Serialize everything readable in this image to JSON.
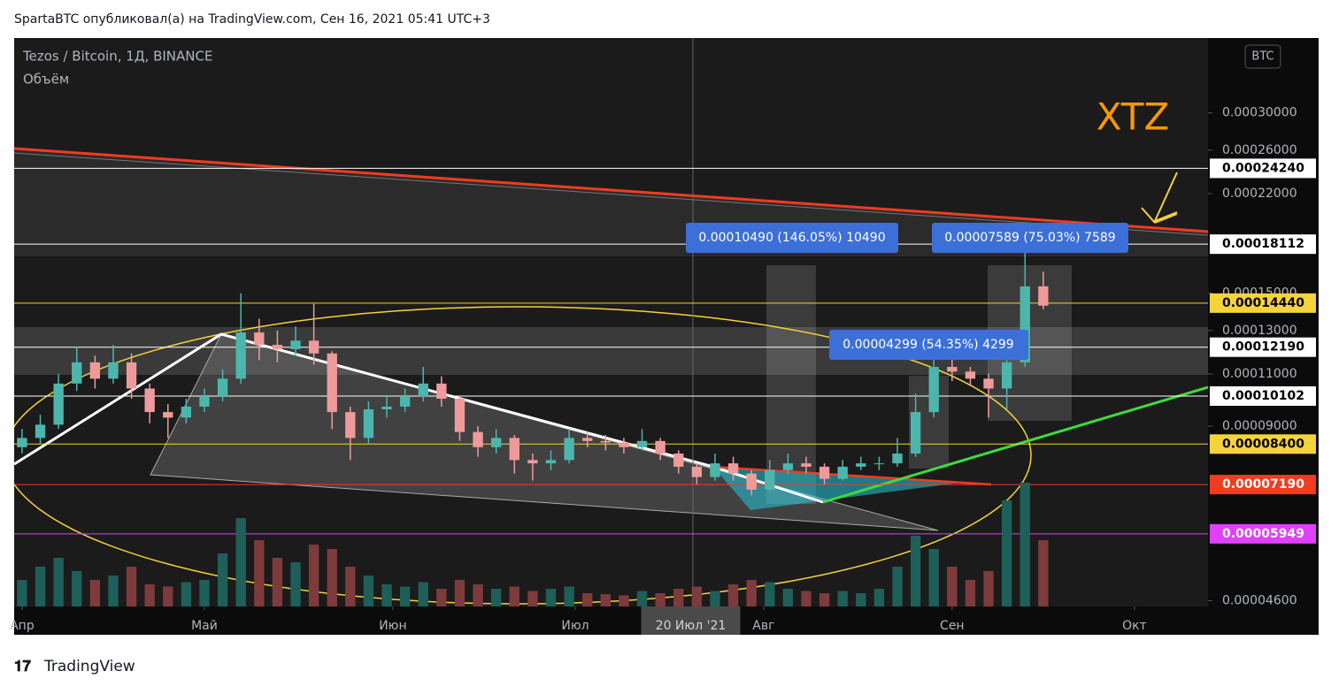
{
  "header": "SpartaBTC опубликовал(а) на TradingView.com, Сен 16, 2021 05:41 UTC+3",
  "footer": "TradingView",
  "chart_data": {
    "type": "candlestick",
    "title": "Tezos / Bitcoin, 1Д, BINANCE",
    "indicator": "Объём",
    "currency": "BTC",
    "symbol_note": "XTZ",
    "crosshair_label": "20 Июл '21",
    "log_scale": true,
    "up_color": "#4db6ac",
    "down_color": "#ef9a9a",
    "volume_up_color": "#1f5f59",
    "volume_down_color": "#7d3b3b",
    "xlim": [
      -1.3,
      195.1
    ],
    "xticks": [
      {
        "value": 0,
        "label": "Апр"
      },
      {
        "value": 30,
        "label": "Май"
      },
      {
        "value": 61,
        "label": "Июн"
      },
      {
        "value": 91,
        "label": "Июл"
      },
      {
        "value": 122,
        "label": "Авг"
      },
      {
        "value": 153,
        "label": "Сен"
      },
      {
        "value": 183,
        "label": "Окт"
      }
    ],
    "crosshair_x": 110,
    "ylim": [
      4.5e-05,
      0.0004
    ],
    "yticks": [
      {
        "value": 0.0003,
        "label": "0.00030000"
      },
      {
        "value": 0.00026,
        "label": "0.00026000"
      },
      {
        "value": 0.00022,
        "label": "0.00022000"
      },
      {
        "value": 0.00015,
        "label": "0.00015000"
      },
      {
        "value": 0.00013,
        "label": "0.00013000"
      },
      {
        "value": 0.00011,
        "label": "0.00011000"
      },
      {
        "value": 9e-05,
        "label": "0.00009000"
      },
      {
        "value": 4.6e-05,
        "label": "0.00004600"
      }
    ],
    "hlines": [
      {
        "value": 0.0002424,
        "label": "0.00024240",
        "color": "#ffffff",
        "text_color": "#000000"
      },
      {
        "value": 0.00018112,
        "label": "0.00018112",
        "color": "#ffffff",
        "text_color": "#000000"
      },
      {
        "value": 0.0001444,
        "label": "0.00014440",
        "color": "#f5d33a",
        "text_color": "#000000"
      },
      {
        "value": 0.0001219,
        "label": "0.00012190",
        "color": "#ffffff",
        "text_color": "#000000"
      },
      {
        "value": 0.00010102,
        "label": "0.00010102",
        "color": "#ffffff",
        "text_color": "#000000"
      },
      {
        "value": 8.4e-05,
        "label": "0.00008400",
        "color": "#f5d33a",
        "text_color": "#000000"
      },
      {
        "value": 7.19e-05,
        "label": "0.00007190",
        "color": "#f23b21",
        "text_color": "#ffffff"
      },
      {
        "value": 5.949e-05,
        "label": "0.00005949",
        "color": "#e040fb",
        "text_color": "#ffffff"
      }
    ],
    "annotations": [
      "0.00010490 (146.05%) 10490",
      "0.00007589 (75.03%) 7589",
      "0.00004299 (54.35%) 4299"
    ],
    "vlim": [
      0,
      300
    ],
    "x": [
      0,
      3,
      6,
      9,
      12,
      15,
      18,
      21,
      24,
      27,
      30,
      33,
      36,
      39,
      42,
      45,
      48,
      51,
      54,
      57,
      60,
      63,
      66,
      69,
      72,
      75,
      78,
      81,
      84,
      87,
      90,
      93,
      96,
      99,
      102,
      105,
      108,
      111,
      114,
      117,
      120,
      123,
      126,
      129,
      132,
      135,
      138,
      141,
      144,
      147,
      150,
      153,
      156,
      159,
      162,
      165,
      168
    ],
    "open": [
      8.3e-05,
      8.6e-05,
      9.05e-05,
      0.000106,
      0.000115,
      0.000108,
      0.000115,
      0.000104,
      9.5e-05,
      9.3e-05,
      9.7e-05,
      0.000101,
      0.000108,
      0.000129,
      0.000123,
      0.000121,
      0.000125,
      0.000119,
      9.5e-05,
      8.6e-05,
      9.6e-05,
      9.7e-05,
      0.000101,
      0.000106,
      0.0001,
      8.8e-05,
      8.3e-05,
      8.6e-05,
      7.9e-05,
      7.8e-05,
      7.9e-05,
      8.6e-05,
      8.5e-05,
      8.45e-05,
      8.3e-05,
      8.5e-05,
      8.1e-05,
      7.7e-05,
      7.4e-05,
      7.8e-05,
      7.5e-05,
      7.05e-05,
      7.6e-05,
      7.8e-05,
      7.7e-05,
      7.35e-05,
      7.7e-05,
      7.8e-05,
      7.8e-05,
      8.1e-05,
      9.5e-05,
      0.000113,
      0.000111,
      0.000108,
      0.000104,
      0.000115,
      0.000154
    ],
    "high": [
      8.9e-05,
      9.4e-05,
      0.00011,
      0.000122,
      0.000118,
      0.000123,
      0.000119,
      0.000106,
      9.8e-05,
      0.0001,
      0.000104,
      0.000112,
      0.00015,
      0.000136,
      0.00013,
      0.000132,
      0.000144,
      0.00012,
      9.7e-05,
      9.9e-05,
      0.000101,
      0.000104,
      0.000113,
      0.000109,
      0.000101,
      9e-05,
      8.9e-05,
      8.7e-05,
      8.1e-05,
      8.2e-05,
      8.9e-05,
      8.8e-05,
      8.7e-05,
      8.6e-05,
      8.9e-05,
      8.6e-05,
      8.2e-05,
      7.8e-05,
      8.1e-05,
      8e-05,
      7.6e-05,
      7.9e-05,
      8.1e-05,
      8e-05,
      7.8e-05,
      7.9e-05,
      8e-05,
      8e-05,
      8.6e-05,
      0.000102,
      0.000124,
      0.000119,
      0.000113,
      0.00011,
      0.000122,
      0.000181,
      0.000163
    ],
    "low": [
      8.1e-05,
      8.4e-05,
      8.9e-05,
      0.000103,
      0.000104,
      0.000106,
      0.0001,
      9.1e-05,
      8.6e-05,
      9.1e-05,
      9.5e-05,
      9.9e-05,
      0.000106,
      0.000116,
      0.000115,
      0.000118,
      0.000114,
      8.9e-05,
      7.9e-05,
      8.4e-05,
      9.3e-05,
      9.5e-05,
      9.9e-05,
      9.7e-05,
      8.5e-05,
      8e-05,
      8.1e-05,
      7.5e-05,
      7.3e-05,
      7.6e-05,
      7.8e-05,
      8.3e-05,
      8.2e-05,
      8.1e-05,
      8.2e-05,
      7.9e-05,
      7.5e-05,
      7.2e-05,
      7.3e-05,
      7.3e-05,
      6.9e-05,
      7e-05,
      7.5e-05,
      7.5e-05,
      7.2e-05,
      7.3e-05,
      7.6e-05,
      7.6e-05,
      7.7e-05,
      8e-05,
      9.3e-05,
      0.000107,
      0.000105,
      9.3e-05,
      9.6e-05,
      0.000113,
      0.000141
    ],
    "close": [
      8.6e-05,
      9.05e-05,
      0.000106,
      0.000115,
      0.000108,
      0.000115,
      0.000104,
      9.5e-05,
      9.3e-05,
      9.7e-05,
      0.000101,
      0.000108,
      0.000129,
      0.000123,
      0.000121,
      0.000125,
      0.000119,
      9.5e-05,
      8.6e-05,
      9.6e-05,
      9.7e-05,
      0.000101,
      0.000106,
      0.0001,
      8.8e-05,
      8.3e-05,
      8.6e-05,
      7.9e-05,
      7.8e-05,
      7.9e-05,
      8.6e-05,
      8.5e-05,
      8.45e-05,
      8.3e-05,
      8.5e-05,
      8.1e-05,
      7.7e-05,
      7.4e-05,
      7.8e-05,
      7.5e-05,
      7.05e-05,
      7.6e-05,
      7.8e-05,
      7.7e-05,
      7.35e-05,
      7.7e-05,
      7.8e-05,
      7.8e-05,
      8.1e-05,
      9.5e-05,
      0.000113,
      0.000111,
      0.000108,
      0.000104,
      0.000115,
      0.000154,
      0.000143
    ],
    "volume": [
      60,
      90,
      110,
      80,
      60,
      70,
      90,
      50,
      45,
      55,
      60,
      120,
      200,
      150,
      110,
      100,
      140,
      130,
      90,
      70,
      50,
      45,
      55,
      40,
      60,
      50,
      40,
      45,
      35,
      40,
      45,
      30,
      28,
      25,
      35,
      30,
      40,
      45,
      35,
      50,
      60,
      55,
      40,
      35,
      30,
      35,
      30,
      40,
      90,
      160,
      130,
      90,
      60,
      80,
      240,
      280,
      150
    ]
  }
}
